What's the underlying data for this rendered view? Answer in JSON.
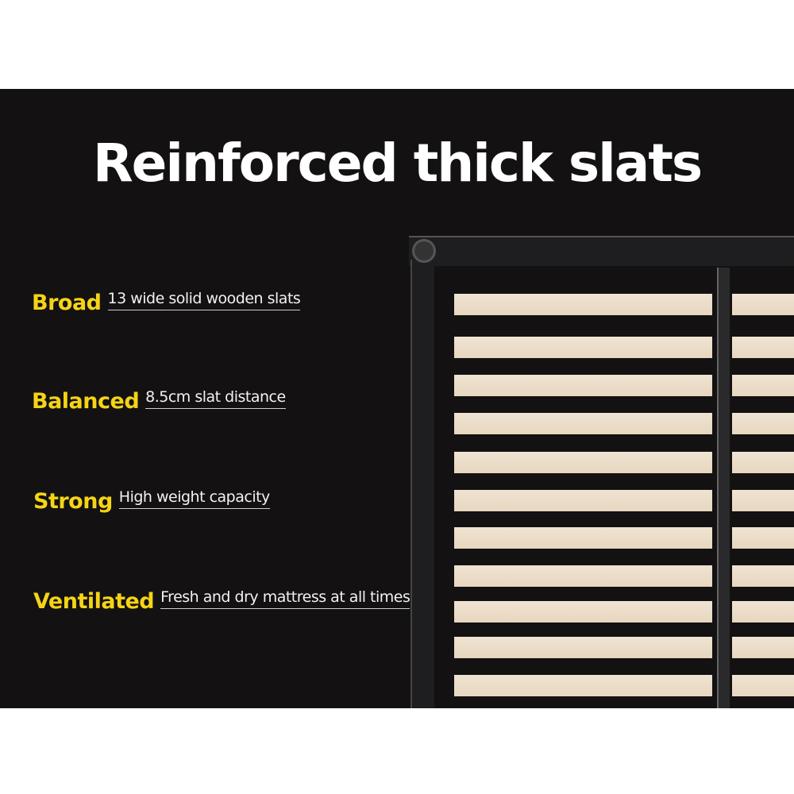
{
  "title": "Reinforced thick slats",
  "features": [
    {
      "label": "Broad",
      "description": "13 wide solid wooden slats"
    },
    {
      "label": "Balanced",
      "description": "8.5cm slat distance"
    },
    {
      "label": "Strong",
      "description": "High weight capacity"
    },
    {
      "label": "Ventilated",
      "description": "Fresh and dry mattress at all times"
    }
  ],
  "colors": {
    "background": "#131111",
    "accent": "#f5d416",
    "slat": "#ecdcc8"
  }
}
